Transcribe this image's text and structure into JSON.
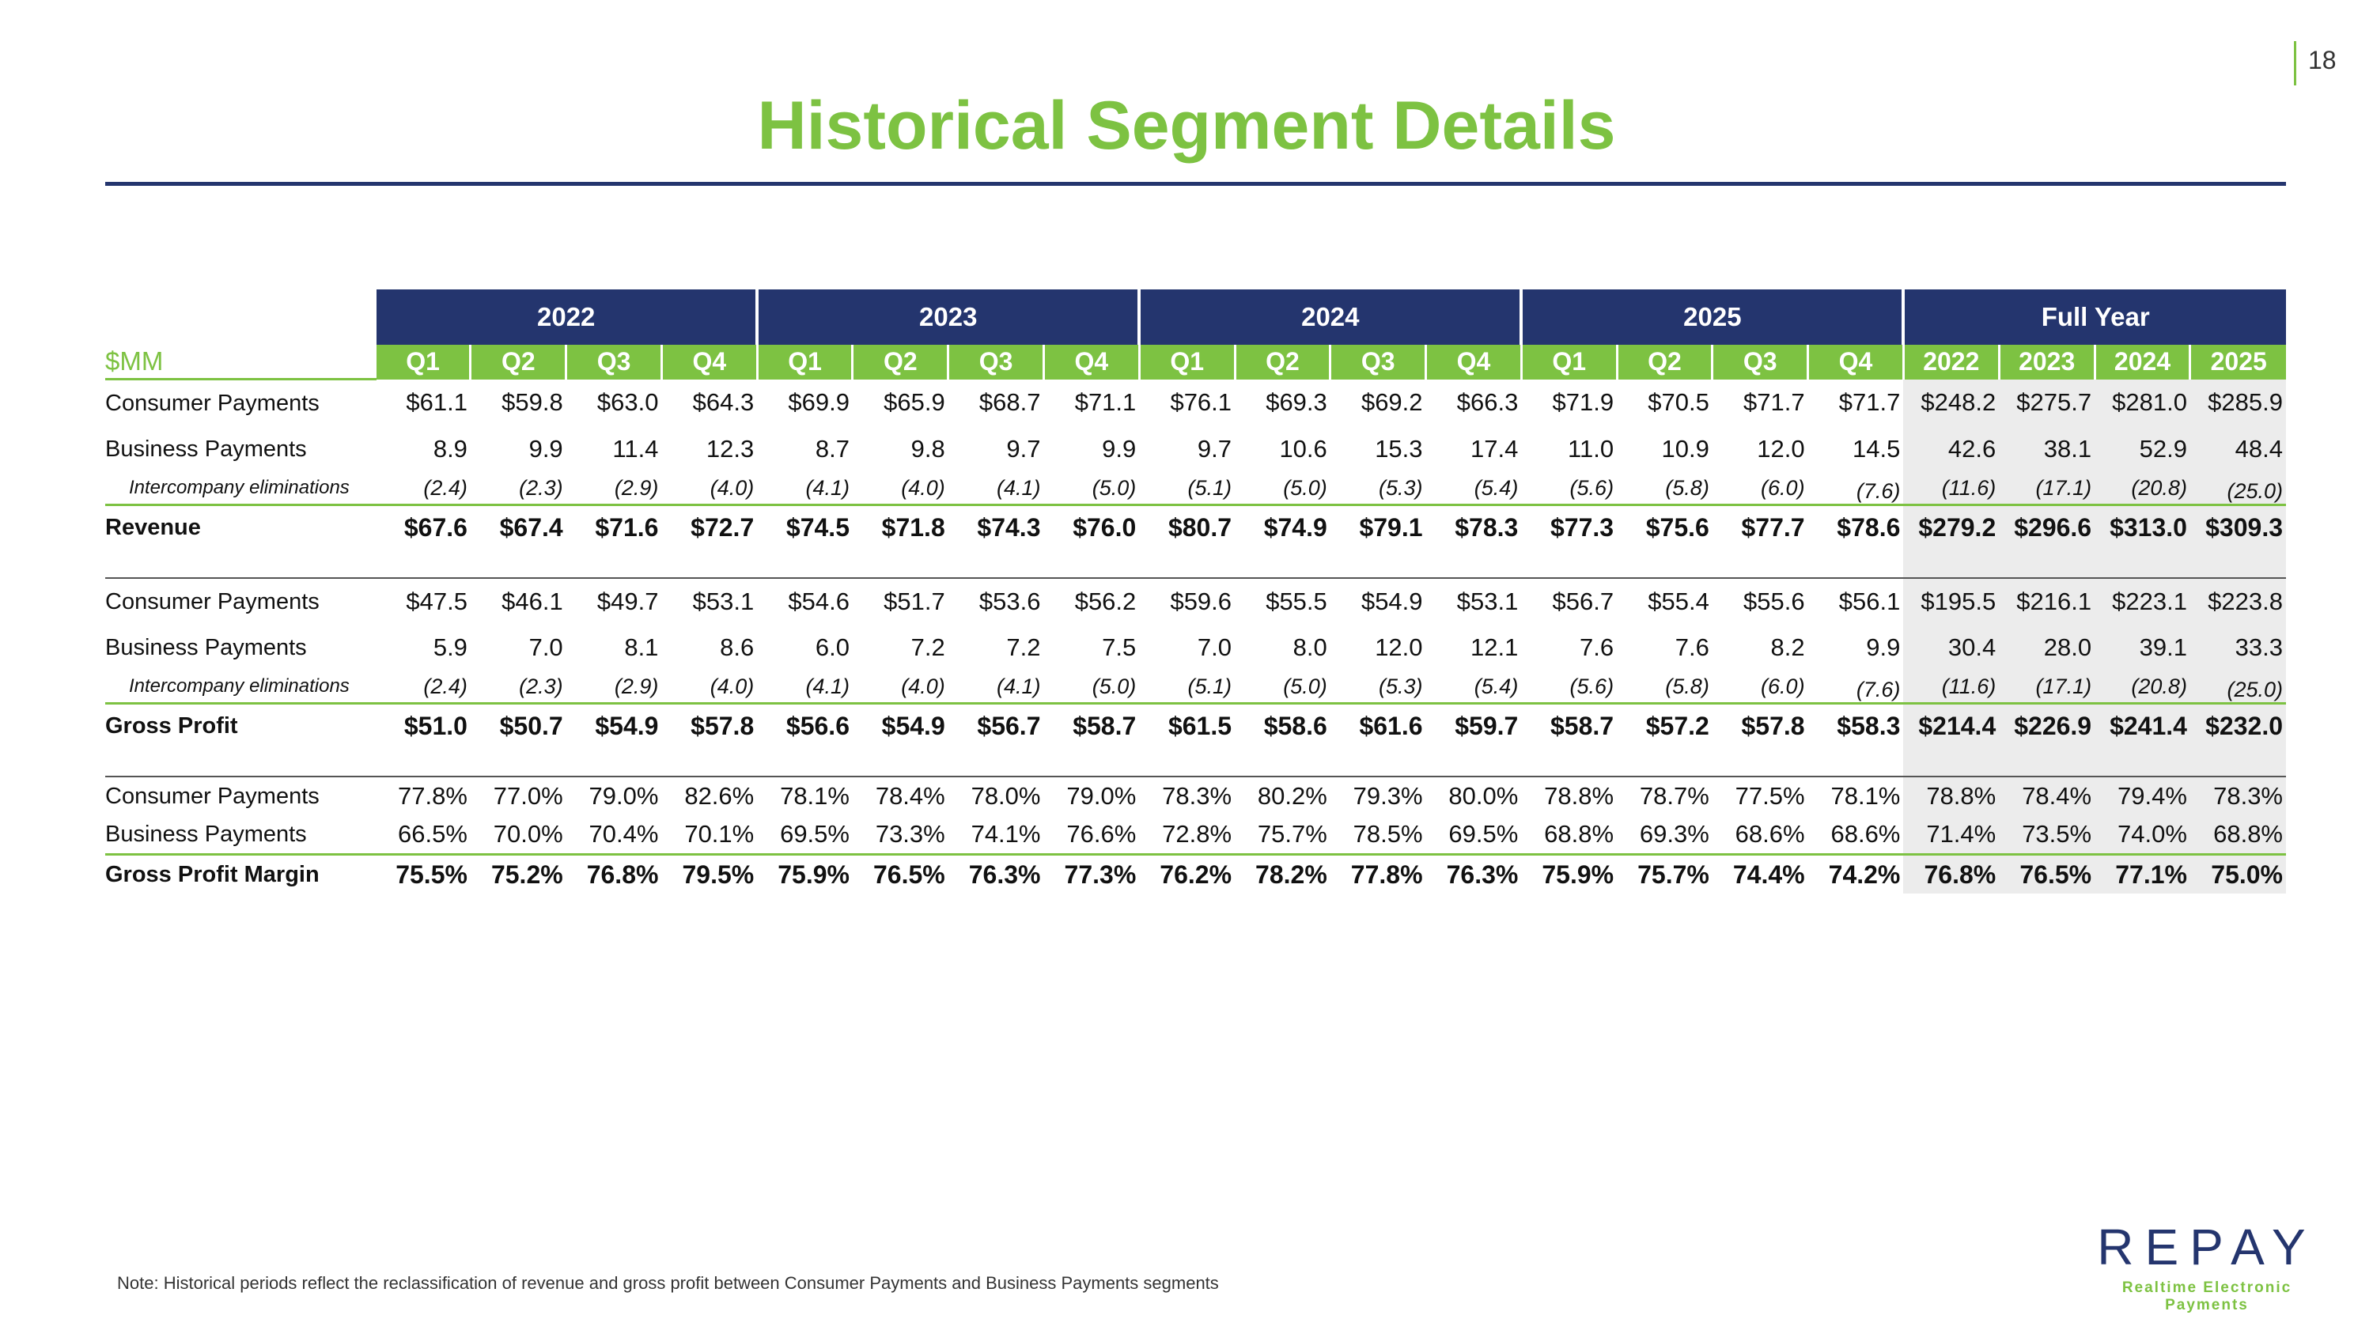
{
  "page_number": "18",
  "title": "Historical Segment Details",
  "table": {
    "unit_label": "$MM",
    "years": [
      "2022",
      "2023",
      "2024",
      "2025",
      "Full Year"
    ],
    "quarters": [
      "Q1",
      "Q2",
      "Q3",
      "Q4",
      "Q1",
      "Q2",
      "Q3",
      "Q4",
      "Q1",
      "Q2",
      "Q3",
      "Q4",
      "Q1",
      "Q2",
      "Q3",
      "Q4"
    ],
    "full_year_cols": [
      "2022",
      "2023",
      "2024",
      "2025"
    ],
    "revenue": {
      "consumer": {
        "label": "Consumer Payments",
        "values": [
          "$61.1",
          "$59.8",
          "$63.0",
          "$64.3",
          "$69.9",
          "$65.9",
          "$68.7",
          "$71.1",
          "$76.1",
          "$69.3",
          "$69.2",
          "$66.3",
          "$71.9",
          "$70.5",
          "$71.7",
          "$71.7",
          "$248.2",
          "$275.7",
          "$281.0",
          "$285.9"
        ]
      },
      "business": {
        "label": "Business Payments",
        "values": [
          "8.9",
          "9.9",
          "11.4",
          "12.3",
          "8.7",
          "9.8",
          "9.7",
          "9.9",
          "9.7",
          "10.6",
          "15.3",
          "17.4",
          "11.0",
          "10.9",
          "12.0",
          "14.5",
          "42.6",
          "38.1",
          "52.9",
          "48.4"
        ]
      },
      "elim": {
        "label": "Intercompany eliminations",
        "values": [
          "(2.4)",
          "(2.3)",
          "(2.9)",
          "(4.0)",
          "(4.1)",
          "(4.0)",
          "(4.1)",
          "(5.0)",
          "(5.1)",
          "(5.0)",
          "(5.3)",
          "(5.4)",
          "(5.6)",
          "(5.8)",
          "(6.0)",
          "(7.6)",
          "(11.6)",
          "(17.1)",
          "(20.8)",
          "(25.0)"
        ]
      },
      "total": {
        "label": "Revenue",
        "values": [
          "$67.6",
          "$67.4",
          "$71.6",
          "$72.7",
          "$74.5",
          "$71.8",
          "$74.3",
          "$76.0",
          "$80.7",
          "$74.9",
          "$79.1",
          "$78.3",
          "$77.3",
          "$75.6",
          "$77.7",
          "$78.6",
          "$279.2",
          "$296.6",
          "$313.0",
          "$309.3"
        ]
      }
    },
    "gross_profit": {
      "consumer": {
        "label": "Consumer Payments",
        "values": [
          "$47.5",
          "$46.1",
          "$49.7",
          "$53.1",
          "$54.6",
          "$51.7",
          "$53.6",
          "$56.2",
          "$59.6",
          "$55.5",
          "$54.9",
          "$53.1",
          "$56.7",
          "$55.4",
          "$55.6",
          "$56.1",
          "$195.5",
          "$216.1",
          "$223.1",
          "$223.8"
        ]
      },
      "business": {
        "label": "Business Payments",
        "values": [
          "5.9",
          "7.0",
          "8.1",
          "8.6",
          "6.0",
          "7.2",
          "7.2",
          "7.5",
          "7.0",
          "8.0",
          "12.0",
          "12.1",
          "7.6",
          "7.6",
          "8.2",
          "9.9",
          "30.4",
          "28.0",
          "39.1",
          "33.3"
        ]
      },
      "elim": {
        "label": "Intercompany eliminations",
        "values": [
          "(2.4)",
          "(2.3)",
          "(2.9)",
          "(4.0)",
          "(4.1)",
          "(4.0)",
          "(4.1)",
          "(5.0)",
          "(5.1)",
          "(5.0)",
          "(5.3)",
          "(5.4)",
          "(5.6)",
          "(5.8)",
          "(6.0)",
          "(7.6)",
          "(11.6)",
          "(17.1)",
          "(20.8)",
          "(25.0)"
        ]
      },
      "total": {
        "label": "Gross Profit",
        "values": [
          "$51.0",
          "$50.7",
          "$54.9",
          "$57.8",
          "$56.6",
          "$54.9",
          "$56.7",
          "$58.7",
          "$61.5",
          "$58.6",
          "$61.6",
          "$59.7",
          "$58.7",
          "$57.2",
          "$57.8",
          "$58.3",
          "$214.4",
          "$226.9",
          "$241.4",
          "$232.0"
        ]
      }
    },
    "margin": {
      "consumer": {
        "label": "Consumer Payments",
        "values": [
          "77.8%",
          "77.0%",
          "79.0%",
          "82.6%",
          "78.1%",
          "78.4%",
          "78.0%",
          "79.0%",
          "78.3%",
          "80.2%",
          "79.3%",
          "80.0%",
          "78.8%",
          "78.7%",
          "77.5%",
          "78.1%",
          "78.8%",
          "78.4%",
          "79.4%",
          "78.3%"
        ]
      },
      "business": {
        "label": "Business Payments",
        "values": [
          "66.5%",
          "70.0%",
          "70.4%",
          "70.1%",
          "69.5%",
          "73.3%",
          "74.1%",
          "76.6%",
          "72.8%",
          "75.7%",
          "78.5%",
          "69.5%",
          "68.8%",
          "69.3%",
          "68.6%",
          "68.6%",
          "71.4%",
          "73.5%",
          "74.0%",
          "68.8%"
        ]
      },
      "total": {
        "label": "Gross Profit Margin",
        "values": [
          "75.5%",
          "75.2%",
          "76.8%",
          "79.5%",
          "75.9%",
          "76.5%",
          "76.3%",
          "77.3%",
          "76.2%",
          "78.2%",
          "77.8%",
          "76.3%",
          "75.9%",
          "75.7%",
          "74.4%",
          "74.2%",
          "76.8%",
          "76.5%",
          "77.1%",
          "75.0%"
        ]
      }
    }
  },
  "note": "Note: Historical periods reflect the reclassification of revenue and gross profit between Consumer Payments and Business Payments segments",
  "logo": {
    "wordmark": "REPAY",
    "tagline": "Realtime Electronic Payments"
  },
  "colors": {
    "green": "#7dc242",
    "navy": "#24356e",
    "fy_shade": "#ececec"
  }
}
